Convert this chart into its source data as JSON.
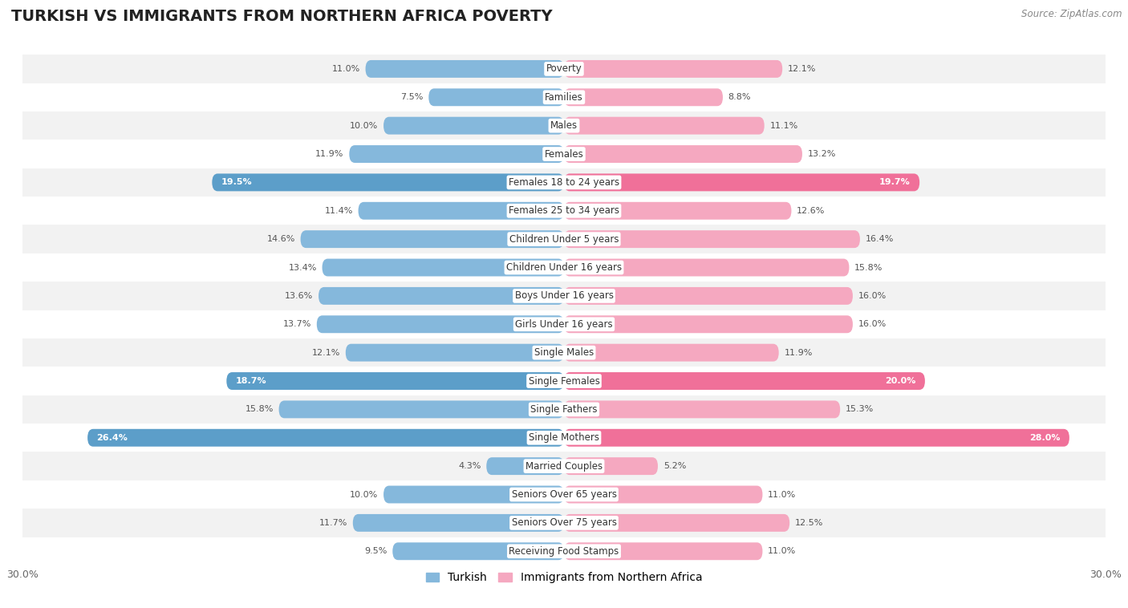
{
  "title": "TURKISH VS IMMIGRANTS FROM NORTHERN AFRICA POVERTY",
  "source": "Source: ZipAtlas.com",
  "categories": [
    "Poverty",
    "Families",
    "Males",
    "Females",
    "Females 18 to 24 years",
    "Females 25 to 34 years",
    "Children Under 5 years",
    "Children Under 16 years",
    "Boys Under 16 years",
    "Girls Under 16 years",
    "Single Males",
    "Single Females",
    "Single Fathers",
    "Single Mothers",
    "Married Couples",
    "Seniors Over 65 years",
    "Seniors Over 75 years",
    "Receiving Food Stamps"
  ],
  "turkish_values": [
    11.0,
    7.5,
    10.0,
    11.9,
    19.5,
    11.4,
    14.6,
    13.4,
    13.6,
    13.7,
    12.1,
    18.7,
    15.8,
    26.4,
    4.3,
    10.0,
    11.7,
    9.5
  ],
  "immigrants_values": [
    12.1,
    8.8,
    11.1,
    13.2,
    19.7,
    12.6,
    16.4,
    15.8,
    16.0,
    16.0,
    11.9,
    20.0,
    15.3,
    28.0,
    5.2,
    11.0,
    12.5,
    11.0
  ],
  "turkish_color": "#85b8dc",
  "immigrants_color": "#f5a8c0",
  "turkish_highlight_color": "#5c9ec9",
  "immigrants_highlight_color": "#f07099",
  "highlight_rows": [
    4,
    11,
    13
  ],
  "background_color": "#ffffff",
  "row_bg_odd": "#f2f2f2",
  "row_bg_even": "#ffffff",
  "legend_turkish": "Turkish",
  "legend_immigrants": "Immigrants from Northern Africa",
  "title_fontsize": 14,
  "label_fontsize": 8.5,
  "value_fontsize": 8.0,
  "xlim_half": 30.0
}
